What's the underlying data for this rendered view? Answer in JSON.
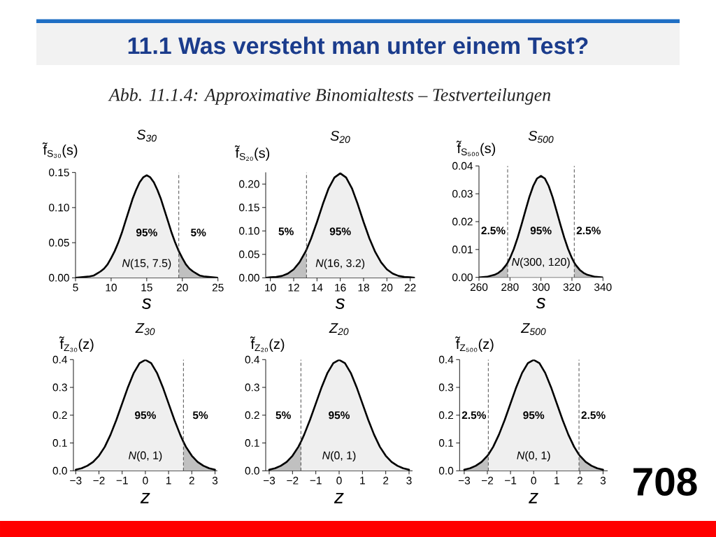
{
  "chart_data": [
    {
      "type": "other",
      "title": "11.1 Was versteht man unter einem Test?",
      "subtitle": "Abb. 11.1.4: Approximative Binomialtests – Testverteilungen",
      "annotations": [
        "708"
      ]
    },
    {
      "type": "line",
      "title": "S$_{30}$",
      "xlabel": "s",
      "ylabel": "f̃$_{S₃₀}$(s)",
      "x": [
        5,
        6,
        7,
        7.5,
        8,
        8.5,
        9,
        9.5,
        10,
        10.5,
        11,
        11.5,
        12,
        12.5,
        13,
        13.5,
        14,
        14.5,
        15,
        15.5,
        16,
        16.5,
        17,
        17.5,
        18,
        18.5,
        19,
        19.5,
        20,
        20.5,
        21,
        21.5,
        22,
        22.5,
        23,
        24,
        25
      ],
      "series": [
        {
          "type": "area",
          "color": "#efefef",
          "x": [
            5,
            6,
            7,
            7.5,
            8,
            8.5,
            9,
            9.5,
            10,
            10.5,
            11,
            11.5,
            12,
            12.5,
            13,
            13.5,
            14,
            14.5,
            15,
            15.5,
            16,
            16.5,
            17,
            17.5,
            18,
            18.5,
            19,
            19.5
          ],
          "values": [
            0.0,
            0.001,
            0.002,
            0.003,
            0.006,
            0.009,
            0.013,
            0.019,
            0.028,
            0.038,
            0.05,
            0.064,
            0.08,
            0.096,
            0.112,
            0.125,
            0.136,
            0.143,
            0.146,
            0.143,
            0.136,
            0.125,
            0.112,
            0.096,
            0.08,
            0.064,
            0.05,
            0.038
          ]
        },
        {
          "type": "area",
          "color": "#c0c0c0",
          "x": [
            19.5,
            20,
            20.5,
            21,
            21.5,
            22,
            22.5,
            23,
            24,
            25
          ],
          "values": [
            0.038,
            0.028,
            0.019,
            0.013,
            0.009,
            0.006,
            0.003,
            0.002,
            0.001,
            0.0
          ]
        },
        {
          "name": "*N*(15, 7.5)",
          "color": "#000000",
          "values": [
            0.0,
            0.001,
            0.002,
            0.003,
            0.006,
            0.009,
            0.013,
            0.019,
            0.028,
            0.038,
            0.05,
            0.064,
            0.08,
            0.096,
            0.112,
            0.125,
            0.136,
            0.143,
            0.146,
            0.143,
            0.136,
            0.125,
            0.112,
            0.096,
            0.08,
            0.064,
            0.05,
            0.038,
            0.028,
            0.019,
            0.013,
            0.009,
            0.006,
            0.003,
            0.002,
            0.001,
            0.0
          ]
        }
      ],
      "xlim": [
        5,
        25
      ],
      "ylim": [
        0,
        0.15
      ],
      "xticks": [
        5,
        10,
        15,
        20,
        25
      ],
      "yticks": [
        {
          "value": 0,
          "label": "0.00"
        },
        0.05,
        {
          "value": 0.1,
          "label": "0.10"
        },
        0.15
      ],
      "ref_lines": [
        {
          "axis": "x",
          "value": 19.5,
          "line_style": "dashed",
          "color": "#3a3a3a"
        }
      ],
      "annotations": [
        "95%",
        "5%"
      ]
    },
    {
      "type": "line",
      "title": "S$_{20}$",
      "xlabel": "s",
      "ylabel": "f̃$_{S₂₀}$(s)",
      "x": [
        9.6,
        10,
        10.5,
        11,
        11.5,
        12,
        12.5,
        13,
        13.1,
        13.5,
        14,
        14.5,
        15,
        15.5,
        16,
        16.5,
        17,
        17.5,
        18,
        18.5,
        19,
        19.5,
        20,
        20.5,
        21,
        21.5,
        22,
        22.4
      ],
      "series": [
        {
          "type": "area",
          "color": "#efefef",
          "x": [
            13.1,
            13.5,
            14,
            14.5,
            15,
            15.5,
            16,
            16.5,
            17,
            17.5,
            18,
            18.5,
            19,
            19.5,
            20,
            20.5,
            21,
            21.5,
            22,
            22.4
          ],
          "values": [
            0.06,
            0.084,
            0.119,
            0.157,
            0.191,
            0.214,
            0.223,
            0.214,
            0.191,
            0.157,
            0.119,
            0.084,
            0.055,
            0.033,
            0.018,
            0.009,
            0.004,
            0.002,
            0.001,
            0.0
          ]
        },
        {
          "type": "area",
          "color": "#c0c0c0",
          "x": [
            9.6,
            10,
            10.5,
            11,
            11.5,
            12,
            12.5,
            13,
            13.1
          ],
          "values": [
            0.0,
            0.001,
            0.002,
            0.004,
            0.009,
            0.018,
            0.033,
            0.055,
            0.06
          ]
        },
        {
          "name": "*N*(16, 3.2)",
          "color": "#000000",
          "values": [
            0.0,
            0.001,
            0.002,
            0.004,
            0.009,
            0.018,
            0.033,
            0.055,
            0.06,
            0.084,
            0.119,
            0.157,
            0.191,
            0.214,
            0.223,
            0.214,
            0.191,
            0.157,
            0.119,
            0.084,
            0.055,
            0.033,
            0.018,
            0.009,
            0.004,
            0.002,
            0.001,
            0.0
          ]
        }
      ],
      "xlim": [
        9.6,
        22.4
      ],
      "ylim": [
        0,
        0.225
      ],
      "xticks": [
        10,
        12,
        14,
        16,
        18,
        20,
        22
      ],
      "yticks": [
        {
          "value": 0,
          "label": "0.00"
        },
        0.05,
        {
          "value": 0.1,
          "label": "0.10"
        },
        0.15,
        {
          "value": 0.2,
          "label": "0.20"
        }
      ],
      "ref_lines": [
        {
          "axis": "x",
          "value": 13.1,
          "line_style": "dashed",
          "color": "#3a3a3a"
        }
      ],
      "annotations": [
        "5%",
        "95%"
      ]
    },
    {
      "type": "line",
      "title": "S$_{500}$",
      "xlabel": "s",
      "ylabel": "f̃$_{S₅₀₀}$(s)",
      "x": [
        260,
        265,
        270,
        272.5,
        275,
        277.5,
        278.5,
        280,
        282.5,
        285,
        287.5,
        290,
        292.5,
        295,
        297.5,
        300,
        302.5,
        305,
        307.5,
        310,
        312.5,
        315,
        317.5,
        320,
        321.5,
        322.5,
        325,
        327.5,
        330,
        335,
        340
      ],
      "series": [
        {
          "type": "area",
          "color": "#efefef",
          "x": [
            278.5,
            280,
            282.5,
            285,
            287.5,
            290,
            292.5,
            295,
            297.5,
            300,
            302.5,
            305,
            307.5,
            310,
            312.5,
            315,
            317.5,
            320,
            321.5
          ],
          "values": [
            0.0053,
            0.0069,
            0.0102,
            0.0143,
            0.019,
            0.024,
            0.0288,
            0.0328,
            0.0355,
            0.0364,
            0.0355,
            0.0328,
            0.0288,
            0.024,
            0.019,
            0.0143,
            0.0102,
            0.0069,
            0.0053
          ]
        },
        {
          "type": "area",
          "color": "#c0c0c0",
          "x": [
            260,
            265,
            270,
            272.5,
            275,
            277.5,
            278.5
          ],
          "values": [
            0.0,
            0.0002,
            0.0009,
            0.0016,
            0.0027,
            0.0044,
            0.0053
          ]
        },
        {
          "type": "area",
          "color": "#c0c0c0",
          "x": [
            321.5,
            322.5,
            325,
            327.5,
            330,
            335,
            340
          ],
          "values": [
            0.0053,
            0.0044,
            0.0027,
            0.0016,
            0.0009,
            0.0002,
            0.0
          ]
        },
        {
          "name": "*N*(300, 120)",
          "color": "#000000",
          "values": [
            0.0,
            0.0002,
            0.0009,
            0.0016,
            0.0027,
            0.0044,
            0.0053,
            0.0069,
            0.0102,
            0.0143,
            0.019,
            0.024,
            0.0288,
            0.0328,
            0.0355,
            0.0364,
            0.0355,
            0.0328,
            0.0288,
            0.024,
            0.019,
            0.0143,
            0.0102,
            0.0069,
            0.0053,
            0.0044,
            0.0027,
            0.0016,
            0.0009,
            0.0002,
            0.0
          ]
        }
      ],
      "xlim": [
        260,
        340
      ],
      "ylim": [
        0,
        0.04
      ],
      "xticks": [
        260,
        280,
        300,
        320,
        340
      ],
      "yticks": [
        {
          "value": 0,
          "label": "0.00"
        },
        0.01,
        0.02,
        0.03,
        0.04
      ],
      "ref_lines": [
        {
          "axis": "x",
          "value": 278.5,
          "line_style": "dashed",
          "color": "#3a3a3a"
        },
        {
          "axis": "x",
          "value": 321.5,
          "line_style": "dashed",
          "color": "#3a3a3a"
        }
      ],
      "annotations": [
        "2.5%",
        "95%",
        "2.5%"
      ]
    },
    {
      "type": "line",
      "title": "Z$_{30}$",
      "xlabel": "z",
      "ylabel": "f̃$_{Z₃₀}$(z)",
      "x": [
        -3,
        -2.75,
        -2.5,
        -2.25,
        -2,
        -1.75,
        -1.5,
        -1.25,
        -1,
        -0.75,
        -0.5,
        -0.25,
        0,
        0.25,
        0.5,
        0.75,
        1,
        1.25,
        1.5,
        1.64,
        1.75,
        2,
        2.25,
        2.5,
        2.75,
        3
      ],
      "series": [
        {
          "type": "area",
          "color": "#efefef",
          "x": [
            -3,
            -2.75,
            -2.5,
            -2.25,
            -2,
            -1.75,
            -1.5,
            -1.25,
            -1,
            -0.75,
            -0.5,
            -0.25,
            0,
            0.25,
            0.5,
            0.75,
            1,
            1.25,
            1.5,
            1.64
          ],
          "values": [
            0.004,
            0.009,
            0.018,
            0.032,
            0.054,
            0.086,
            0.13,
            0.183,
            0.242,
            0.301,
            0.352,
            0.387,
            0.399,
            0.387,
            0.352,
            0.301,
            0.242,
            0.183,
            0.13,
            0.104
          ]
        },
        {
          "type": "area",
          "color": "#c0c0c0",
          "x": [
            1.64,
            1.75,
            2,
            2.25,
            2.5,
            2.75,
            3
          ],
          "values": [
            0.104,
            0.086,
            0.054,
            0.032,
            0.018,
            0.009,
            0.004
          ]
        },
        {
          "name": "*N*(0, 1)",
          "color": "#000000",
          "values": [
            0.004,
            0.009,
            0.018,
            0.032,
            0.054,
            0.086,
            0.13,
            0.183,
            0.242,
            0.301,
            0.352,
            0.387,
            0.399,
            0.387,
            0.352,
            0.301,
            0.242,
            0.183,
            0.13,
            0.104,
            0.086,
            0.054,
            0.032,
            0.018,
            0.009,
            0.004
          ]
        }
      ],
      "xlim": [
        -3.1,
        3.1
      ],
      "ylim": [
        0,
        0.4
      ],
      "xticks": [
        {
          "value": -3,
          "label": "−3"
        },
        {
          "value": -2,
          "label": "−2"
        },
        {
          "value": -1,
          "label": "−1"
        },
        0,
        1,
        2,
        3
      ],
      "yticks": [
        {
          "value": 0,
          "label": "0.0"
        },
        0.1,
        0.2,
        0.3,
        0.4
      ],
      "ref_lines": [
        {
          "axis": "x",
          "value": 1.64,
          "line_style": "dashed",
          "color": "#3a3a3a"
        }
      ],
      "annotations": [
        "95%",
        "5%"
      ]
    },
    {
      "type": "line",
      "title": "Z$_{20}$",
      "xlabel": "z",
      "ylabel": "f̃$_{Z₂₀}$(z)",
      "x": [
        -3,
        -2.75,
        -2.5,
        -2.25,
        -2,
        -1.75,
        -1.64,
        -1.5,
        -1.25,
        -1,
        -0.75,
        -0.5,
        -0.25,
        0,
        0.25,
        0.5,
        0.75,
        1,
        1.25,
        1.5,
        1.75,
        2,
        2.25,
        2.5,
        2.75,
        3
      ],
      "series": [
        {
          "type": "area",
          "color": "#efefef",
          "x": [
            -1.64,
            -1.5,
            -1.25,
            -1,
            -0.75,
            -0.5,
            -0.25,
            0,
            0.25,
            0.5,
            0.75,
            1,
            1.25,
            1.5,
            1.75,
            2,
            2.25,
            2.5,
            2.75,
            3
          ],
          "values": [
            0.104,
            0.13,
            0.183,
            0.242,
            0.301,
            0.352,
            0.387,
            0.399,
            0.387,
            0.352,
            0.301,
            0.242,
            0.183,
            0.13,
            0.086,
            0.054,
            0.032,
            0.018,
            0.009,
            0.004
          ]
        },
        {
          "type": "area",
          "color": "#c0c0c0",
          "x": [
            -3,
            -2.75,
            -2.5,
            -2.25,
            -2,
            -1.75,
            -1.64
          ],
          "values": [
            0.004,
            0.009,
            0.018,
            0.032,
            0.054,
            0.086,
            0.104
          ]
        },
        {
          "name": "*N*(0, 1)",
          "color": "#000000",
          "values": [
            0.004,
            0.009,
            0.018,
            0.032,
            0.054,
            0.086,
            0.104,
            0.13,
            0.183,
            0.242,
            0.301,
            0.352,
            0.387,
            0.399,
            0.387,
            0.352,
            0.301,
            0.242,
            0.183,
            0.13,
            0.086,
            0.054,
            0.032,
            0.018,
            0.009,
            0.004
          ]
        }
      ],
      "xlim": [
        -3.15,
        3.15
      ],
      "ylim": [
        0,
        0.4
      ],
      "xticks": [
        {
          "value": -3,
          "label": "−3"
        },
        {
          "value": -2,
          "label": "−2"
        },
        {
          "value": -1,
          "label": "−1"
        },
        0,
        1,
        2,
        3
      ],
      "yticks": [
        {
          "value": 0,
          "label": "0.0"
        },
        0.1,
        0.2,
        0.3,
        0.4
      ],
      "ref_lines": [
        {
          "axis": "x",
          "value": -1.64,
          "line_style": "dashed",
          "color": "#3a3a3a"
        }
      ],
      "annotations": [
        "5%",
        "95%"
      ]
    },
    {
      "type": "line",
      "title": "Z$_{500}$",
      "xlabel": "z",
      "ylabel": "f̃$_{Z₅₀₀}$(z)",
      "x": [
        -3,
        -2.75,
        -2.5,
        -2.25,
        -2,
        -1.96,
        -1.75,
        -1.5,
        -1.25,
        -1,
        -0.75,
        -0.5,
        -0.25,
        0,
        0.25,
        0.5,
        0.75,
        1,
        1.25,
        1.5,
        1.75,
        1.96,
        2,
        2.25,
        2.5,
        2.75,
        3
      ],
      "series": [
        {
          "type": "area",
          "color": "#efefef",
          "x": [
            -1.96,
            -1.75,
            -1.5,
            -1.25,
            -1,
            -0.75,
            -0.5,
            -0.25,
            0,
            0.25,
            0.5,
            0.75,
            1,
            1.25,
            1.5,
            1.75,
            1.96
          ],
          "values": [
            0.058,
            0.086,
            0.13,
            0.183,
            0.242,
            0.301,
            0.352,
            0.387,
            0.399,
            0.387,
            0.352,
            0.301,
            0.242,
            0.183,
            0.13,
            0.086,
            0.058
          ]
        },
        {
          "type": "area",
          "color": "#c0c0c0",
          "x": [
            -3,
            -2.75,
            -2.5,
            -2.25,
            -2,
            -1.96
          ],
          "values": [
            0.004,
            0.009,
            0.018,
            0.032,
            0.054,
            0.058
          ]
        },
        {
          "type": "area",
          "color": "#c0c0c0",
          "x": [
            1.96,
            2,
            2.25,
            2.5,
            2.75,
            3
          ],
          "values": [
            0.058,
            0.054,
            0.032,
            0.018,
            0.009,
            0.004
          ]
        },
        {
          "name": "*N*(0, 1)",
          "color": "#000000",
          "values": [
            0.004,
            0.009,
            0.018,
            0.032,
            0.054,
            0.058,
            0.086,
            0.13,
            0.183,
            0.242,
            0.301,
            0.352,
            0.387,
            0.399,
            0.387,
            0.352,
            0.301,
            0.242,
            0.183,
            0.13,
            0.086,
            0.058,
            0.054,
            0.032,
            0.018,
            0.009,
            0.004
          ]
        }
      ],
      "xlim": [
        -3.2,
        3.2
      ],
      "ylim": [
        0,
        0.4
      ],
      "xticks": [
        {
          "value": -3,
          "label": "−3"
        },
        {
          "value": -2,
          "label": "−2"
        },
        {
          "value": -1,
          "label": "−1"
        },
        0,
        1,
        2,
        3
      ],
      "yticks": [
        {
          "value": 0,
          "label": "0.0"
        },
        0.1,
        0.2,
        0.3,
        0.4
      ],
      "ref_lines": [
        {
          "axis": "x",
          "value": -1.96,
          "line_style": "dashed",
          "color": "#3a3a3a"
        },
        {
          "axis": "x",
          "value": 1.96,
          "line_style": "dashed",
          "color": "#3a3a3a"
        }
      ],
      "annotations": [
        "2.5%",
        "95%",
        "2.5%"
      ]
    }
  ]
}
